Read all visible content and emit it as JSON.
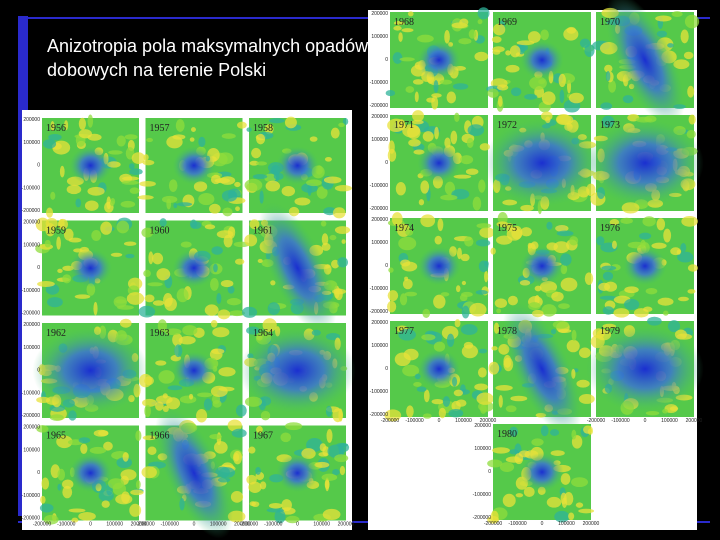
{
  "title": "Anizotropia pola maksymalnych opadów dobowych na terenie Polski",
  "left_panel": {
    "maps": [
      {
        "year": "1956"
      },
      {
        "year": "1957"
      },
      {
        "year": "1958"
      },
      {
        "year": "1959"
      },
      {
        "year": "1960"
      },
      {
        "year": "1961"
      },
      {
        "year": "1962"
      },
      {
        "year": "1963"
      },
      {
        "year": "1964"
      },
      {
        "year": "1965"
      },
      {
        "year": "1966"
      },
      {
        "year": "1967"
      }
    ],
    "y_axis_labels": [
      "200000",
      "100000",
      "0",
      "-100000",
      "-200000"
    ],
    "x_axis_labels": [
      "-200000",
      "-100000",
      "0",
      "100000",
      "200000"
    ]
  },
  "right_panel": {
    "maps": [
      {
        "year": "1968"
      },
      {
        "year": "1969"
      },
      {
        "year": "1970"
      },
      {
        "year": "1971"
      },
      {
        "year": "1972"
      },
      {
        "year": "1973"
      },
      {
        "year": "1974"
      },
      {
        "year": "1975"
      },
      {
        "year": "1976"
      },
      {
        "year": "1977"
      },
      {
        "year": "1978"
      },
      {
        "year": "1979"
      },
      {
        "year": "1980"
      }
    ],
    "y_axis_labels": [
      "200000",
      "100000",
      "0",
      "-100000",
      "-200000"
    ],
    "x_axis_labels": [
      "-200000",
      "-100000",
      "0",
      "100000",
      "200000"
    ]
  }
}
